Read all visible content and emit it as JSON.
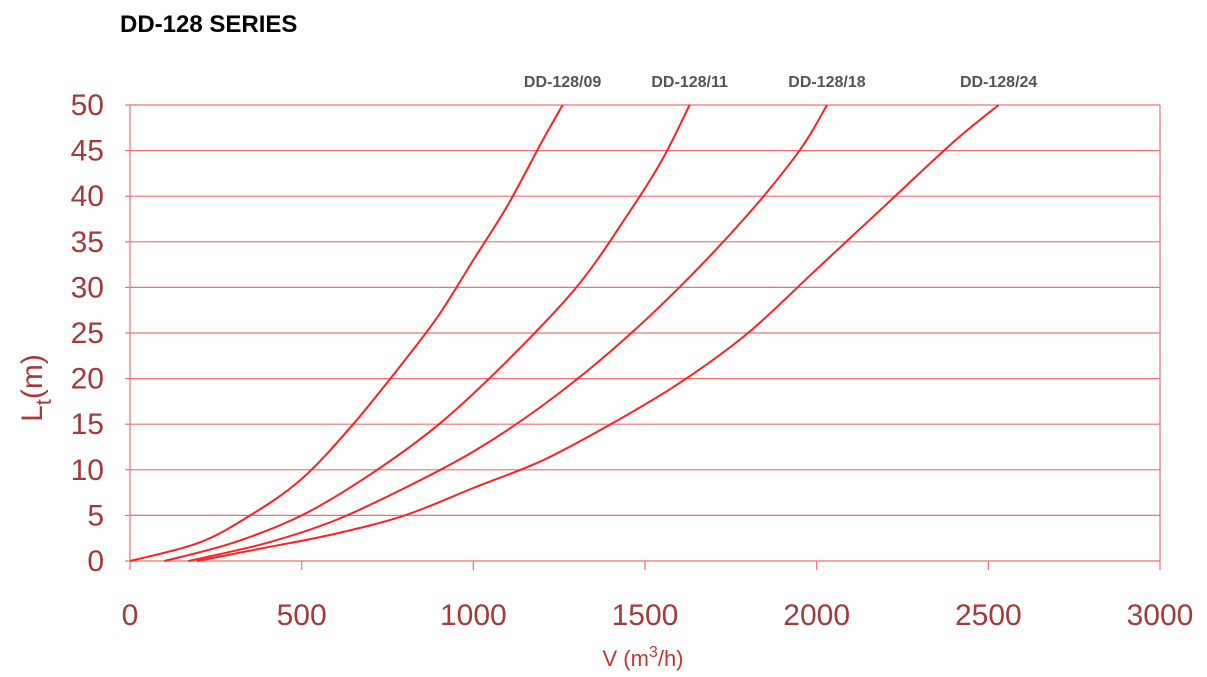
{
  "chart_data": {
    "type": "line",
    "title": "DD-128 SERIES",
    "xlabel": {
      "main": "V (m",
      "sup": "3",
      "tail": "/h)"
    },
    "ylabel": {
      "main": "L",
      "sub": "t",
      "tail": "(m)"
    },
    "xlim": [
      0,
      3000
    ],
    "ylim": [
      0,
      50
    ],
    "x_ticks": [
      "0",
      "500",
      "1000",
      "1500",
      "2000",
      "2500",
      "3000"
    ],
    "y_ticks": [
      "0",
      "5",
      "10",
      "15",
      "20",
      "25",
      "30",
      "35",
      "40",
      "45",
      "50"
    ],
    "grid": true,
    "line_color": "#ff2020",
    "grid_color": "#f07070",
    "tick_color": "#a63a3a",
    "series": [
      {
        "name": "DD-128/09",
        "x": [
          0,
          200,
          350,
          500,
          650,
          800,
          900,
          1000,
          1100,
          1200,
          1260
        ],
        "y": [
          0,
          2,
          5,
          9,
          15,
          22,
          27,
          33,
          39,
          46,
          50
        ]
      },
      {
        "name": "DD-128/11",
        "x": [
          100,
          300,
          500,
          700,
          900,
          1100,
          1300,
          1450,
          1550,
          1630
        ],
        "y": [
          0,
          2,
          5,
          9.5,
          15,
          22,
          30,
          38,
          44,
          50
        ]
      },
      {
        "name": "DD-128/18",
        "x": [
          170,
          400,
          600,
          800,
          1000,
          1200,
          1400,
          1600,
          1800,
          1950,
          2030
        ],
        "y": [
          0,
          2,
          4.5,
          8,
          12,
          17,
          23,
          30,
          38,
          45,
          50
        ]
      },
      {
        "name": "DD-128/24",
        "x": [
          195,
          400,
          600,
          800,
          1000,
          1200,
          1400,
          1600,
          1800,
          2000,
          2200,
          2400,
          2530
        ],
        "y": [
          0,
          1.5,
          3,
          5,
          8,
          11,
          15,
          19.5,
          25,
          32,
          39,
          46,
          50
        ]
      }
    ]
  }
}
